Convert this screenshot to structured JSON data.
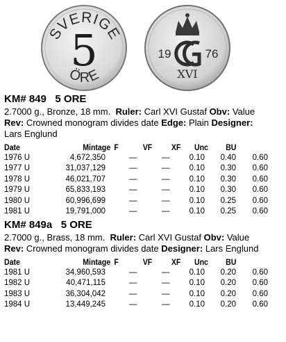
{
  "coin_images": {
    "obverse_text_top": "SVERIGE",
    "obverse_value": "5",
    "obverse_text_bottom": "ÖRE",
    "reverse_date_left": "19",
    "reverse_date_right": "76",
    "reverse_monogram_numeral": "XVI"
  },
  "section1": {
    "km": "KM# 849",
    "denomination": "5 ORE",
    "desc_line1_pre": "2.7000 g., Bronze, 18 mm.",
    "ruler_label": "Ruler:",
    "ruler_value": "Carl XVI Gustaf",
    "obv_label": "Obv:",
    "obv_value": "Value",
    "rev_label": "Rev:",
    "rev_value": "Crowned monogram divides date",
    "edge_label": "Edge:",
    "edge_value": "Plain",
    "designer_label": "Designer:",
    "designer_value": "Lars Englund",
    "headers": [
      "Date",
      "Mintage",
      "F",
      "VF",
      "XF",
      "Unc",
      "BU"
    ],
    "rows": [
      [
        "1976 U",
        "4,672,350",
        "—",
        "—",
        "0.10",
        "0.40",
        "0.60"
      ],
      [
        "1977 U",
        "31,037,129",
        "—",
        "—",
        "0.10",
        "0.30",
        "0.60"
      ],
      [
        "1978 U",
        "46,021,707",
        "—",
        "—",
        "0.10",
        "0.30",
        "0.60"
      ],
      [
        "1979 U",
        "65,833,193",
        "—",
        "—",
        "0.10",
        "0.30",
        "0.60"
      ],
      [
        "1980 U",
        "60,996,699",
        "—",
        "—",
        "0.10",
        "0.25",
        "0.60"
      ],
      [
        "1981 U",
        "19,791,000",
        "—",
        "—",
        "0.10",
        "0.25",
        "0.60"
      ]
    ]
  },
  "section2": {
    "km": "KM# 849a",
    "denomination": "5 ORE",
    "desc_line1_pre": "2.7000 g., Brass, 18 mm.",
    "ruler_label": "Ruler:",
    "ruler_value": "Carl XVI Gustaf",
    "obv_label": "Obv:",
    "obv_value": "Value",
    "rev_label": "Rev:",
    "rev_value": "Crowned monogram divides date",
    "designer_label": "Designer:",
    "designer_value": "Lars Englund",
    "headers": [
      "Date",
      "Mintage",
      "F",
      "VF",
      "XF",
      "Unc",
      "BU"
    ],
    "rows": [
      [
        "1981 U",
        "34,960,593",
        "—",
        "—",
        "0.10",
        "0.20",
        "0.60"
      ],
      [
        "1982 U",
        "40,471,115",
        "—",
        "—",
        "0.10",
        "0.20",
        "0.60"
      ],
      [
        "1983 U",
        "36,304,042",
        "—",
        "—",
        "0.10",
        "0.20",
        "0.60"
      ],
      [
        "1984 U",
        "13,449,245",
        "—",
        "—",
        "0.10",
        "0.20",
        "0.60"
      ]
    ]
  }
}
